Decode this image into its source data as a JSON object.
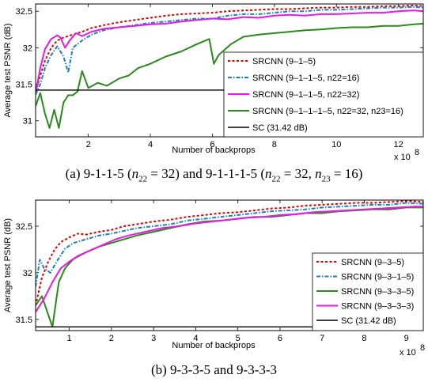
{
  "chart_data": [
    {
      "type": "line",
      "xlabel": "Number of backprops",
      "ylabel": "Average test PSNR (dB)",
      "x_exponent_label": "x 10",
      "x_exponent": "8",
      "xlim": [
        0.3,
        12.8
      ],
      "ylim": [
        30.78,
        32.6
      ],
      "xticks": [
        2,
        4,
        6,
        8,
        10,
        12
      ],
      "yticks": [
        31,
        31.5,
        32,
        32.5
      ],
      "legend_position": "lower-right",
      "caption": "(a) 9-1-1-5 (n22 = 32) and 9-1-1-1-5 (n22 = 32, n23 = 16)",
      "series": [
        {
          "name": "SRCNN (9–1–5)",
          "color": "#e00000",
          "style": "dotted",
          "x": [
            0.3,
            0.45,
            0.6,
            0.8,
            1.0,
            1.2,
            1.5,
            1.8,
            2.1,
            2.5,
            3.0,
            3.5,
            4.0,
            4.5,
            5.0,
            5.5,
            6.0,
            6.5,
            7.0,
            7.5,
            8.0,
            8.5,
            9.0,
            9.5,
            10.0,
            10.5,
            11.0,
            11.5,
            12.0,
            12.5,
            12.8
          ],
          "y": [
            31.4,
            31.62,
            31.82,
            32.0,
            32.1,
            32.14,
            32.18,
            32.22,
            32.27,
            32.31,
            32.35,
            32.38,
            32.41,
            32.44,
            32.46,
            32.47,
            32.48,
            32.5,
            32.51,
            32.52,
            32.53,
            32.53,
            32.54,
            32.55,
            32.55,
            32.56,
            32.56,
            32.57,
            32.57,
            32.58,
            32.57
          ]
        },
        {
          "name": "SRCNN (9–1–1–5, n22=16)",
          "color": "#1a7fc8",
          "style": "dashdot",
          "x": [
            0.3,
            0.45,
            0.6,
            0.8,
            1.0,
            1.2,
            1.35,
            1.5,
            1.8,
            2.1,
            2.5,
            3.0,
            3.5,
            4.0,
            4.5,
            5.0,
            5.5,
            6.0,
            6.5,
            7.0,
            7.5,
            8.0,
            8.5,
            9.0,
            9.5,
            10.0,
            10.5,
            11.0,
            11.5,
            12.0,
            12.5,
            12.8
          ],
          "y": [
            31.36,
            31.5,
            31.72,
            31.9,
            32.02,
            31.88,
            31.66,
            32.0,
            32.1,
            32.18,
            32.24,
            32.28,
            32.31,
            32.34,
            32.36,
            32.38,
            32.4,
            32.4,
            32.44,
            32.46,
            32.46,
            32.48,
            32.5,
            32.5,
            32.52,
            32.52,
            32.53,
            32.54,
            32.55,
            32.55,
            32.56,
            32.55
          ]
        },
        {
          "name": "SRCNN (9–1–1–5, n22=32)",
          "color": "#e619e6",
          "style": "solid",
          "x": [
            0.3,
            0.45,
            0.6,
            0.8,
            1.0,
            1.1,
            1.25,
            1.4,
            1.6,
            1.8,
            2.1,
            2.5,
            3.0,
            3.5,
            4.0,
            4.5,
            5.0,
            5.5,
            6.0,
            6.5,
            7.0,
            7.5,
            8.0,
            8.5,
            9.0,
            9.5,
            10.0,
            10.5,
            11.0,
            11.5,
            12.0,
            12.5,
            12.8
          ],
          "y": [
            31.38,
            31.72,
            31.98,
            32.12,
            32.17,
            32.14,
            32.0,
            32.1,
            32.2,
            32.16,
            32.22,
            32.26,
            32.28,
            32.3,
            32.32,
            32.33,
            32.36,
            32.38,
            32.4,
            32.39,
            32.42,
            32.41,
            32.44,
            32.45,
            32.44,
            32.46,
            32.46,
            32.47,
            32.48,
            32.48,
            32.5,
            32.51,
            32.5
          ]
        },
        {
          "name": "SRCNN (9–1–1–1–5, n22=32, n23=16)",
          "color": "#2a8a1a",
          "style": "solid",
          "x": [
            0.3,
            0.45,
            0.6,
            0.75,
            0.9,
            1.05,
            1.2,
            1.35,
            1.5,
            1.65,
            1.8,
            2.0,
            2.3,
            2.6,
            3.0,
            3.3,
            3.6,
            4.0,
            4.5,
            5.0,
            5.5,
            5.9,
            6.05,
            6.2,
            6.6,
            7.0,
            7.5,
            8.0,
            8.5,
            9.0,
            9.5,
            10.0,
            10.5,
            11.0,
            11.5,
            12.0,
            12.5,
            12.8
          ],
          "y": [
            31.2,
            31.38,
            31.1,
            30.9,
            31.15,
            30.9,
            31.25,
            31.35,
            31.35,
            31.4,
            31.68,
            31.45,
            31.52,
            31.48,
            31.58,
            31.62,
            31.72,
            31.78,
            31.88,
            31.95,
            32.05,
            32.12,
            31.78,
            31.9,
            32.05,
            32.15,
            32.18,
            32.2,
            32.22,
            32.24,
            32.25,
            32.27,
            32.28,
            32.28,
            32.3,
            32.3,
            32.32,
            32.33
          ]
        },
        {
          "name": "SC (31.42 dB)",
          "color": "#000000",
          "style": "solid",
          "x": [
            0.3,
            12.8
          ],
          "y": [
            31.42,
            31.42
          ]
        }
      ]
    },
    {
      "type": "line",
      "xlabel": "Number of backprops",
      "ylabel": "Average test PSNR (dB)",
      "x_exponent_label": "x 10",
      "x_exponent": "8",
      "xlim": [
        0.2,
        9.4
      ],
      "ylim": [
        31.38,
        32.78
      ],
      "xticks": [
        1,
        2,
        3,
        4,
        5,
        6,
        7,
        8,
        9
      ],
      "yticks": [
        31.5,
        32,
        32.5
      ],
      "legend_position": "lower-right",
      "caption": "(b) 9-3-3-5 and 9-3-3-3",
      "series": [
        {
          "name": "SRCNN (9–3–5)",
          "color": "#e00000",
          "style": "dotted",
          "x": [
            0.2,
            0.35,
            0.5,
            0.65,
            0.8,
            1.0,
            1.2,
            1.4,
            1.7,
            2.0,
            2.3,
            2.6,
            3.0,
            3.4,
            3.8,
            4.2,
            4.6,
            5.0,
            5.4,
            5.8,
            6.2,
            6.6,
            7.0,
            7.4,
            7.8,
            8.2,
            8.6,
            9.0,
            9.4
          ],
          "y": [
            31.65,
            31.95,
            32.12,
            32.25,
            32.33,
            32.38,
            32.42,
            32.41,
            32.44,
            32.46,
            32.5,
            32.52,
            32.55,
            32.57,
            32.6,
            32.62,
            32.64,
            32.65,
            32.67,
            32.69,
            32.7,
            32.72,
            32.73,
            32.74,
            32.75,
            32.75,
            32.76,
            32.77,
            32.76
          ]
        },
        {
          "name": "SRCNN (9–3–1–5)",
          "color": "#1a7fc8",
          "style": "dashdot",
          "x": [
            0.2,
            0.3,
            0.4,
            0.55,
            0.7,
            0.9,
            1.1,
            1.4,
            1.7,
            2.0,
            2.3,
            2.6,
            3.0,
            3.4,
            3.8,
            4.2,
            4.6,
            5.0,
            5.4,
            5.8,
            6.2,
            6.6,
            7.0,
            7.4,
            7.8,
            8.2,
            8.6,
            9.0,
            9.4
          ],
          "y": [
            31.85,
            32.14,
            32.05,
            32.0,
            32.12,
            32.26,
            32.32,
            32.36,
            32.4,
            32.42,
            32.45,
            32.48,
            32.5,
            32.52,
            32.56,
            32.58,
            32.6,
            32.62,
            32.64,
            32.66,
            32.67,
            32.68,
            32.7,
            32.71,
            32.72,
            32.73,
            32.73,
            32.75,
            32.74
          ]
        },
        {
          "name": "SRCNN (9–3–3–5)",
          "color": "#2a8a1a",
          "style": "solid",
          "x": [
            0.2,
            0.35,
            0.5,
            0.6,
            0.75,
            0.9,
            1.1,
            1.4,
            1.7,
            2.0,
            2.3,
            2.6,
            3.0,
            3.4,
            3.8,
            4.2,
            4.6,
            5.0,
            5.4,
            5.8,
            6.2,
            6.6,
            7.0,
            7.4,
            7.8,
            8.2,
            8.6,
            9.0,
            9.4
          ],
          "y": [
            31.65,
            31.75,
            31.55,
            31.42,
            31.9,
            32.05,
            32.15,
            32.22,
            32.28,
            32.32,
            32.36,
            32.4,
            32.44,
            32.48,
            32.52,
            32.55,
            32.56,
            32.58,
            32.6,
            32.6,
            32.62,
            32.64,
            32.64,
            32.66,
            32.67,
            32.68,
            32.68,
            32.7,
            32.7
          ]
        },
        {
          "name": "SRCNN (9–3–3–3)",
          "color": "#e619e6",
          "style": "solid",
          "x": [
            0.2,
            0.4,
            0.6,
            0.8,
            1.0,
            1.2,
            1.5,
            1.8,
            2.1,
            2.4,
            2.8,
            3.2,
            3.6,
            4.0,
            4.4,
            4.8,
            5.2,
            5.6,
            6.0,
            6.4,
            6.8,
            7.2,
            7.6,
            8.0,
            8.4,
            8.8,
            9.2,
            9.4
          ],
          "y": [
            31.58,
            31.72,
            31.9,
            32.05,
            32.12,
            32.18,
            32.24,
            32.3,
            32.36,
            32.4,
            32.44,
            32.48,
            32.5,
            32.53,
            32.55,
            32.57,
            32.59,
            32.6,
            32.62,
            32.63,
            32.65,
            32.66,
            32.67,
            32.68,
            32.69,
            32.7,
            32.71,
            32.71
          ]
        },
        {
          "name": "SC (31.42 dB)",
          "color": "#000000",
          "style": "solid",
          "x": [
            0.2,
            9.4
          ],
          "y": [
            31.42,
            31.42
          ]
        }
      ]
    }
  ]
}
